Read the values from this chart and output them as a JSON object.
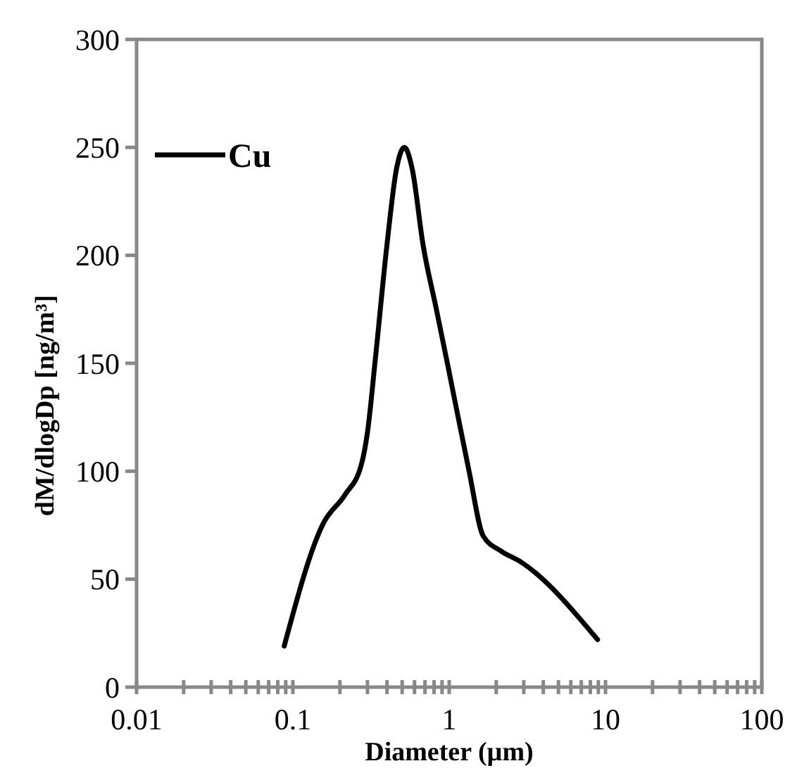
{
  "chart_data": {
    "type": "line",
    "xlabel": "Diameter (µm)",
    "ylabel": "dM/dlogDp [ng/m³]",
    "log": "x",
    "xlim": [
      0.01,
      100
    ],
    "ylim": [
      0,
      300
    ],
    "xticks": [
      0.01,
      {
        "value": 0.02,
        "label": null
      },
      {
        "value": 0.03,
        "label": null
      },
      {
        "value": 0.04,
        "label": null
      },
      {
        "value": 0.05,
        "label": null
      },
      {
        "value": 0.06,
        "label": null
      },
      {
        "value": 0.07,
        "label": null
      },
      {
        "value": 0.08,
        "label": null
      },
      {
        "value": 0.09,
        "label": null
      },
      0.1,
      {
        "value": 0.2,
        "label": null
      },
      {
        "value": 0.3,
        "label": null
      },
      {
        "value": 0.4,
        "label": null
      },
      {
        "value": 0.5,
        "label": null
      },
      {
        "value": 0.6,
        "label": null
      },
      {
        "value": 0.7,
        "label": null
      },
      {
        "value": 0.8,
        "label": null
      },
      {
        "value": 0.9,
        "label": null
      },
      1,
      {
        "value": 2,
        "label": null
      },
      {
        "value": 3,
        "label": null
      },
      {
        "value": 4,
        "label": null
      },
      {
        "value": 5,
        "label": null
      },
      {
        "value": 6,
        "label": null
      },
      {
        "value": 7,
        "label": null
      },
      {
        "value": 8,
        "label": null
      },
      {
        "value": 9,
        "label": null
      },
      10,
      {
        "value": 20,
        "label": null
      },
      {
        "value": 30,
        "label": null
      },
      {
        "value": 40,
        "label": null
      },
      {
        "value": 50,
        "label": null
      },
      {
        "value": 60,
        "label": null
      },
      {
        "value": 70,
        "label": null
      },
      {
        "value": 80,
        "label": null
      },
      {
        "value": 90,
        "label": null
      },
      100
    ],
    "yticks": [
      0,
      50,
      100,
      150,
      200,
      250,
      300
    ],
    "grid": false,
    "legend": "top left",
    "line_style": "solid",
    "series": [
      {
        "name": "Cu",
        "color": "#000000",
        "x": [
          0.088,
          0.157,
          0.215,
          0.274,
          0.3,
          0.338,
          0.4,
          0.46,
          0.517,
          0.58,
          0.68,
          0.828,
          0.98,
          1.34,
          1.65,
          2.15,
          2.87,
          8.9
        ],
        "values": [
          19,
          76,
          89,
          103,
          118,
          153,
          205,
          240,
          250,
          240,
          205,
          175,
          149,
          100,
          70,
          63,
          58,
          22
        ]
      }
    ]
  }
}
